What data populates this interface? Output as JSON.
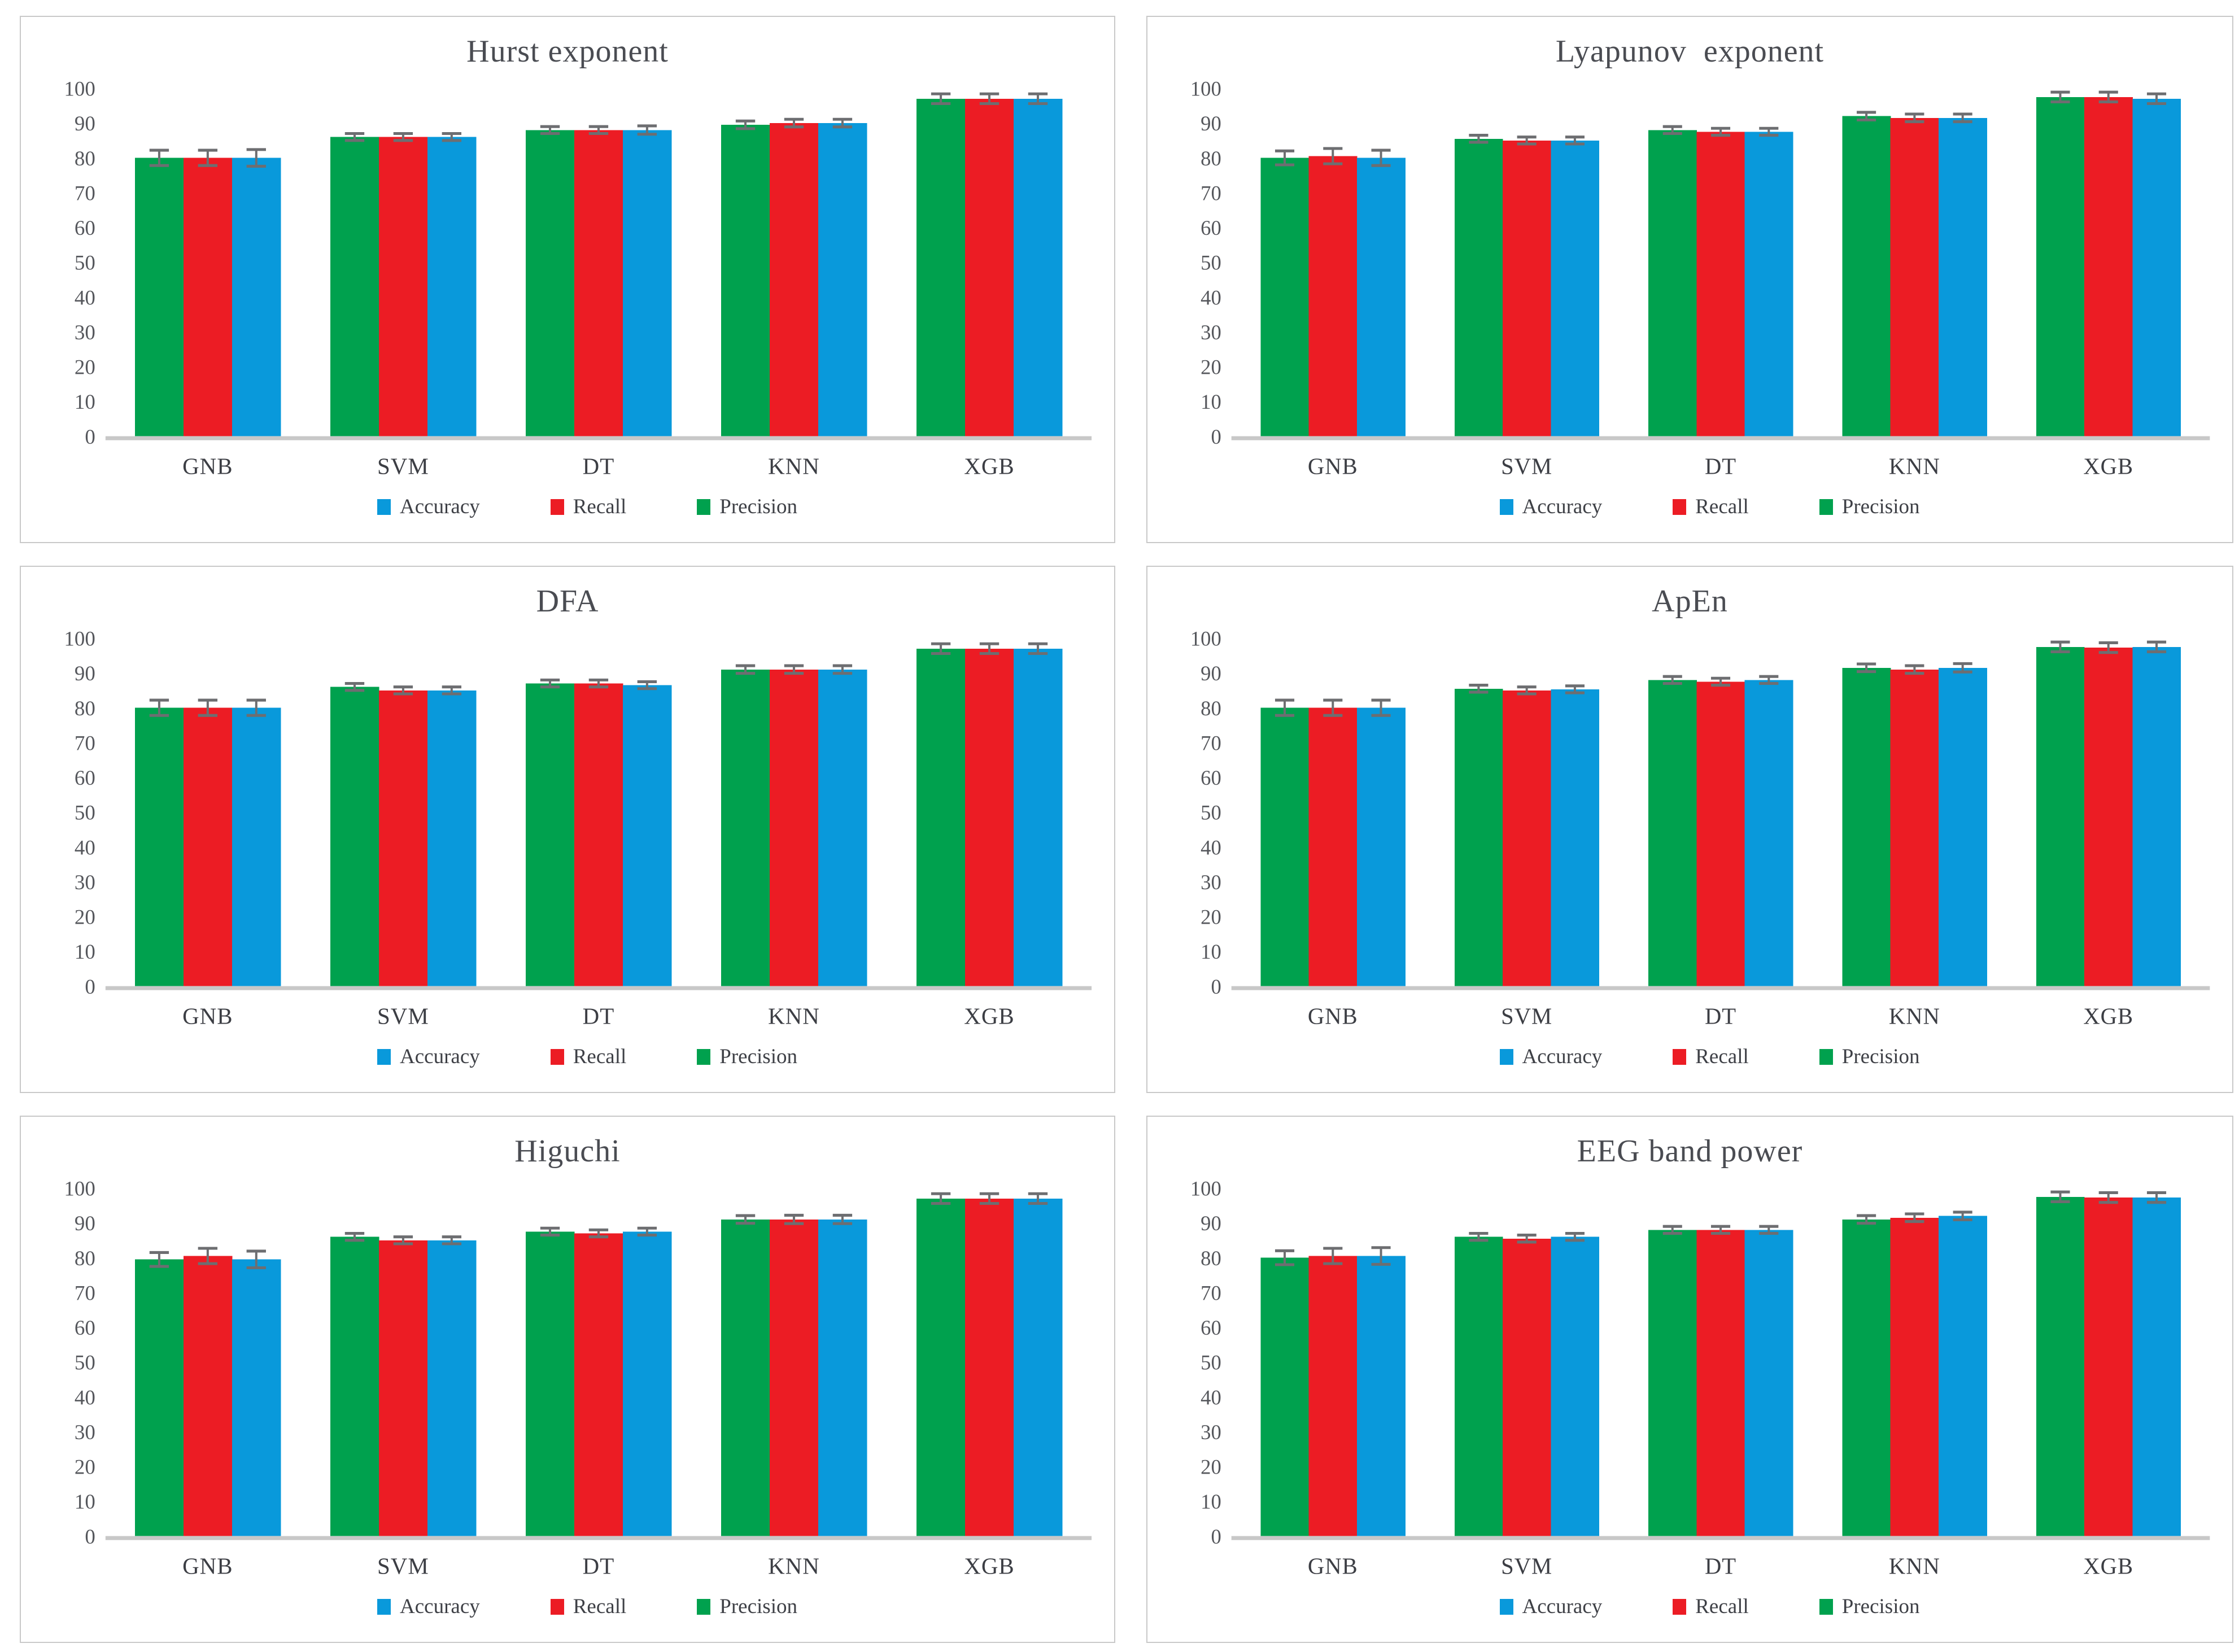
{
  "figure": {
    "description_title": "",
    "panel_count": 6
  },
  "colors": {
    "accuracy": "#0999DB",
    "recall": "#EC1C24",
    "precision": "#00A14E",
    "error_bar": "#6d6e71",
    "baseline": "#c8c8c8",
    "panel_border": "#c9c9c9",
    "title_text": "#4a4c52",
    "tick_text": "#55575c",
    "category_text": "#3c3e44",
    "legend_text": "#3e4046"
  },
  "legend": [
    {
      "label": "Accuracy",
      "color_key": "accuracy"
    },
    {
      "label": "Recall",
      "color_key": "recall"
    },
    {
      "label": "Precision",
      "color_key": "precision"
    }
  ],
  "axis": {
    "ymin": 0,
    "ymax": 100,
    "step": 10,
    "grid": false
  },
  "chart_data": [
    {
      "type": "bar",
      "title": "Hurst exponent",
      "categories": [
        "GNB",
        "SVM",
        "DT",
        "KNN",
        "XGB"
      ],
      "ylim": [
        0,
        100
      ],
      "xlabel": "",
      "ylabel": "",
      "legend_position": "bottom",
      "series": [
        {
          "name": "Precision",
          "color_key": "precision",
          "values": [
            80,
            86,
            88,
            89.5,
            97
          ],
          "errors": [
            2.2,
            1.0,
            1.0,
            1.1,
            1.4
          ]
        },
        {
          "name": "Recall",
          "color_key": "recall",
          "values": [
            80,
            86,
            88,
            90,
            97
          ],
          "errors": [
            2.2,
            1.0,
            1.0,
            1.1,
            1.4
          ]
        },
        {
          "name": "Accuracy",
          "color_key": "accuracy",
          "values": [
            80,
            86,
            88,
            90,
            97
          ],
          "errors": [
            2.4,
            1.0,
            1.2,
            1.1,
            1.4
          ]
        }
      ]
    },
    {
      "type": "bar",
      "title": "Lyapunov  exponent",
      "categories": [
        "GNB",
        "SVM",
        "DT",
        "KNN",
        "XGB"
      ],
      "ylim": [
        0,
        100
      ],
      "xlabel": "",
      "ylabel": "",
      "legend_position": "bottom",
      "series": [
        {
          "name": "Precision",
          "color_key": "precision",
          "values": [
            80,
            85.5,
            88,
            92,
            97.5
          ],
          "errors": [
            2.0,
            1.0,
            1.0,
            1.1,
            1.4
          ]
        },
        {
          "name": "Recall",
          "color_key": "recall",
          "values": [
            80.5,
            85,
            87.5,
            91.5,
            97.5
          ],
          "errors": [
            2.2,
            1.0,
            1.0,
            1.1,
            1.4
          ]
        },
        {
          "name": "Accuracy",
          "color_key": "accuracy",
          "values": [
            80,
            85,
            87.5,
            91.5,
            97
          ],
          "errors": [
            2.2,
            1.0,
            1.0,
            1.1,
            1.4
          ]
        }
      ]
    },
    {
      "type": "bar",
      "title": "DFA",
      "categories": [
        "GNB",
        "SVM",
        "DT",
        "KNN",
        "XGB"
      ],
      "ylim": [
        0,
        100
      ],
      "xlabel": "",
      "ylabel": "",
      "legend_position": "bottom",
      "series": [
        {
          "name": "Precision",
          "color_key": "precision",
          "values": [
            80,
            86,
            87,
            91,
            97
          ],
          "errors": [
            2.2,
            1.0,
            1.0,
            1.1,
            1.4
          ]
        },
        {
          "name": "Recall",
          "color_key": "recall",
          "values": [
            80,
            85,
            87,
            91,
            97
          ],
          "errors": [
            2.2,
            1.0,
            1.0,
            1.1,
            1.4
          ]
        },
        {
          "name": "Accuracy",
          "color_key": "accuracy",
          "values": [
            80,
            85,
            86.5,
            91,
            97
          ],
          "errors": [
            2.2,
            1.0,
            1.0,
            1.1,
            1.4
          ]
        }
      ]
    },
    {
      "type": "bar",
      "title": "ApEn",
      "categories": [
        "GNB",
        "SVM",
        "DT",
        "KNN",
        "XGB"
      ],
      "ylim": [
        0,
        100
      ],
      "xlabel": "",
      "ylabel": "",
      "legend_position": "bottom",
      "series": [
        {
          "name": "Precision",
          "color_key": "precision",
          "values": [
            80,
            85.5,
            88,
            91.5,
            97.5
          ],
          "errors": [
            2.2,
            1.0,
            1.0,
            1.1,
            1.4
          ]
        },
        {
          "name": "Recall",
          "color_key": "recall",
          "values": [
            80,
            85,
            87.5,
            91,
            97.3
          ],
          "errors": [
            2.2,
            1.0,
            1.0,
            1.1,
            1.4
          ]
        },
        {
          "name": "Accuracy",
          "color_key": "accuracy",
          "values": [
            80,
            85.3,
            88,
            91.5,
            97.5
          ],
          "errors": [
            2.2,
            1.0,
            1.0,
            1.2,
            1.4
          ]
        }
      ]
    },
    {
      "type": "bar",
      "title": "Higuchi",
      "categories": [
        "GNB",
        "SVM",
        "DT",
        "KNN",
        "XGB"
      ],
      "ylim": [
        0,
        100
      ],
      "xlabel": "",
      "ylabel": "",
      "legend_position": "bottom",
      "series": [
        {
          "name": "Precision",
          "color_key": "precision",
          "values": [
            79.5,
            86,
            87.5,
            91,
            97
          ],
          "errors": [
            2.0,
            1.0,
            1.0,
            1.1,
            1.4
          ]
        },
        {
          "name": "Recall",
          "color_key": "recall",
          "values": [
            80.5,
            85,
            87,
            91,
            97
          ],
          "errors": [
            2.2,
            1.0,
            1.0,
            1.2,
            1.4
          ]
        },
        {
          "name": "Accuracy",
          "color_key": "accuracy",
          "values": [
            79.5,
            85,
            87.5,
            91,
            97
          ],
          "errors": [
            2.4,
            1.0,
            1.0,
            1.2,
            1.4
          ]
        }
      ]
    },
    {
      "type": "bar",
      "title": "EEG band power",
      "categories": [
        "GNB",
        "SVM",
        "DT",
        "KNN",
        "XGB"
      ],
      "ylim": [
        0,
        100
      ],
      "xlabel": "",
      "ylabel": "",
      "legend_position": "bottom",
      "series": [
        {
          "name": "Precision",
          "color_key": "precision",
          "values": [
            80,
            86,
            88,
            91,
            97.5
          ],
          "errors": [
            2.0,
            1.0,
            1.0,
            1.1,
            1.4
          ]
        },
        {
          "name": "Recall",
          "color_key": "recall",
          "values": [
            80.5,
            85.5,
            88,
            91.5,
            97.3
          ],
          "errors": [
            2.2,
            1.0,
            1.0,
            1.1,
            1.4
          ]
        },
        {
          "name": "Accuracy",
          "color_key": "accuracy",
          "values": [
            80.5,
            86,
            88,
            92,
            97.3
          ],
          "errors": [
            2.4,
            1.0,
            1.0,
            1.1,
            1.4
          ]
        }
      ]
    }
  ]
}
